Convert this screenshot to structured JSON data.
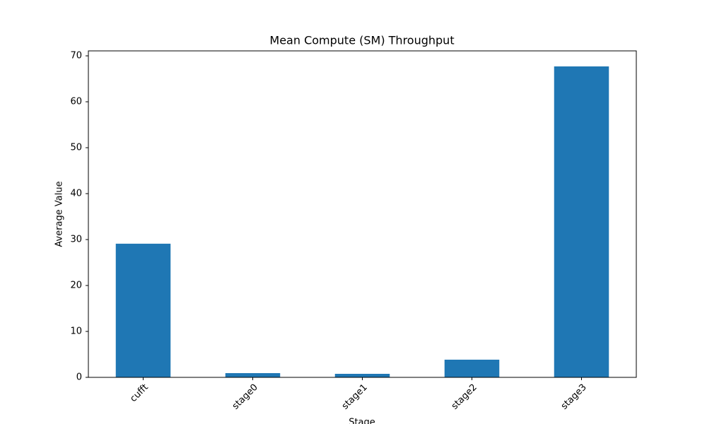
{
  "chart_data": {
    "type": "bar",
    "title": "Mean Compute (SM) Throughput",
    "x_label": "Stage",
    "y_label": "Average Value",
    "categories": [
      "cufft",
      "stage0",
      "stage1",
      "stage2",
      "stage3"
    ],
    "values": [
      29.1,
      0.92,
      0.77,
      3.85,
      67.7
    ],
    "color": "#1f77b4",
    "ylim": [
      0,
      71.08
    ],
    "yticks": [
      0,
      10,
      20,
      30,
      40,
      50,
      60,
      70
    ],
    "grid": false
  }
}
